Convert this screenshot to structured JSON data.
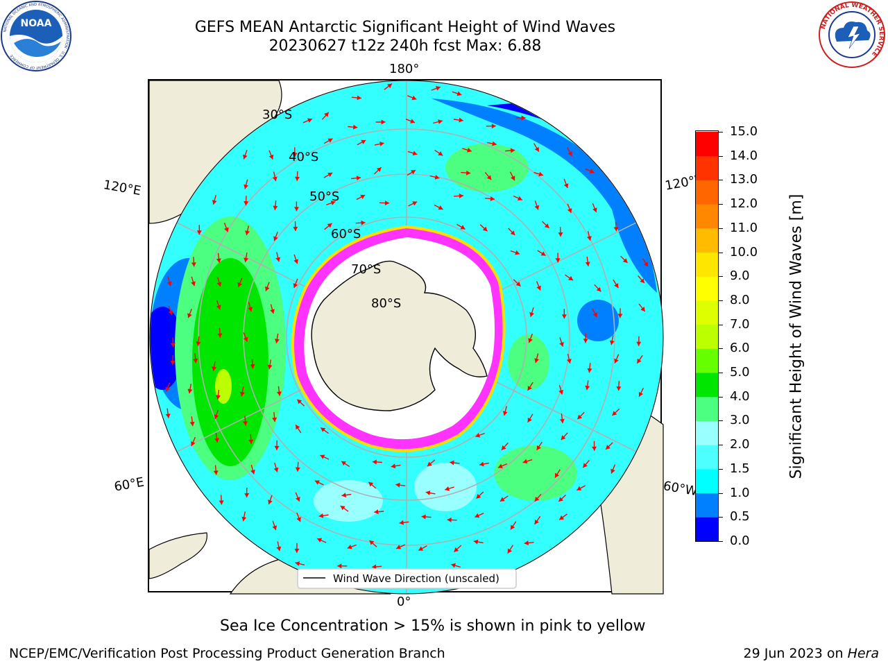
{
  "header": {
    "title_line1": "GEFS MEAN Antarctic Significant Height of Wind Waves",
    "title_line2": "20230627 t12z 240h fcst   Max: 6.88"
  },
  "logos": {
    "noaa_text": "NOAA",
    "noaa_ring": "NATIONAL OCEANIC AND ATMOSPHERIC ADMINISTRATION · U.S. DEPARTMENT OF COMMERCE",
    "nws_ring": "NATIONAL WEATHER SERVICE"
  },
  "map": {
    "projection": "south polar stereographic",
    "lon_labels": {
      "top": "180°",
      "bottom": "0°",
      "upper_left": "120°E",
      "lower_left": "60°E",
      "upper_right": "120°W",
      "lower_right": "60°W"
    },
    "lat_labels": [
      "30°S",
      "40°S",
      "50°S",
      "60°S",
      "70°S",
      "80°S"
    ],
    "legend_label": "Wind Wave Direction (unscaled)",
    "arrow_color": "#ff0000",
    "land_color": "#efedd9",
    "sea_ice_color": "#ff33ff"
  },
  "colorbar": {
    "label": "Significant Height of Wind Waves [m]",
    "ticks": [
      "0.0",
      "0.5",
      "1.0",
      "1.5",
      "2.0",
      "3.0",
      "4.0",
      "5.0",
      "6.0",
      "7.0",
      "8.0",
      "9.0",
      "10.0",
      "11.0",
      "12.0",
      "13.0",
      "14.0",
      "15.0"
    ],
    "colors": [
      "#0000ff",
      "#0080ff",
      "#00ffff",
      "#4dffff",
      "#99ffff",
      "#4dff80",
      "#00e600",
      "#66ff00",
      "#bbff00",
      "#ddff00",
      "#ffff00",
      "#ffe600",
      "#ffbb00",
      "#ff8800",
      "#ff6600",
      "#ff3300",
      "#ff0000"
    ]
  },
  "footnote": "Sea Ice Concentration > 15% is shown in pink to yellow",
  "footer": {
    "left": "NCEP/EMC/Verification Post Processing Product Generation Branch",
    "right_prefix": "29 Jun 2023 on ",
    "right_host": "Hera"
  }
}
